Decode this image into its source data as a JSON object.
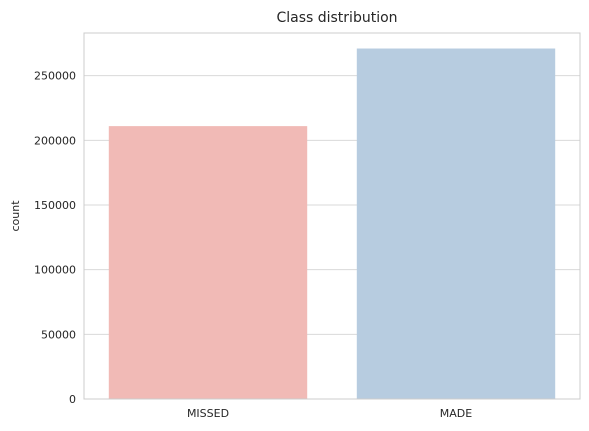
{
  "chart_data": {
    "type": "bar",
    "title": "Class distribution",
    "xlabel": "",
    "ylabel": "count",
    "categories": [
      "MISSED",
      "MADE"
    ],
    "values": [
      211000,
      271000
    ],
    "colors": [
      "#f1bab6",
      "#b7cce0"
    ],
    "ylim": [
      0,
      283000
    ],
    "yticks": [
      0,
      50000,
      100000,
      150000,
      200000,
      250000
    ],
    "grid": true,
    "legend": "none"
  }
}
